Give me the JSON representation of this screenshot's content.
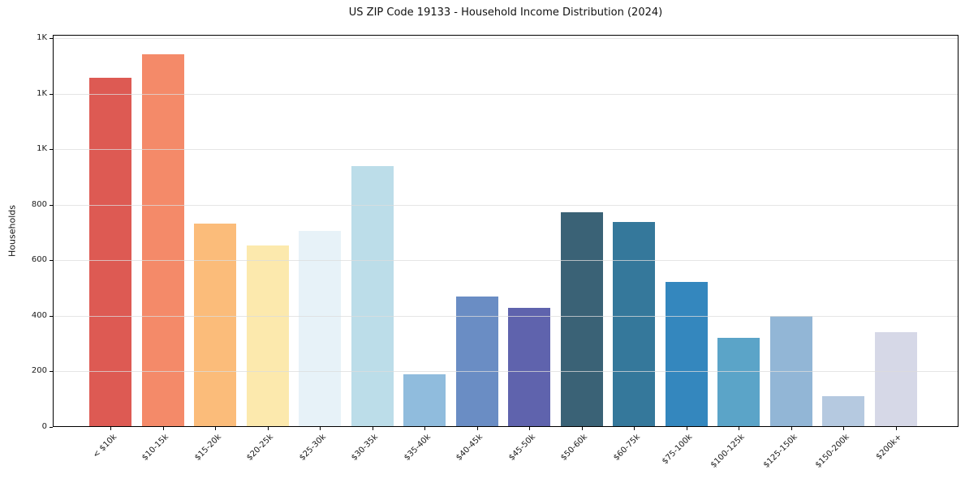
{
  "chart_data": {
    "type": "bar",
    "title": "US ZIP Code 19133 - Household Income Distribution (2024)",
    "xlabel": "",
    "ylabel": "Households",
    "categories": [
      "< $10k",
      "$10-15k",
      "$15-20k",
      "$20-25k",
      "$25-30k",
      "$30-35k",
      "$35-40k",
      "$40-45k",
      "$45-50k",
      "$50-60k",
      "$60-75k",
      "$75-100k",
      "$100-125k",
      "$125-150k",
      "$150-200k",
      "$200k+"
    ],
    "values": [
      1258,
      1342,
      732,
      653,
      706,
      939,
      190,
      470,
      429,
      773,
      738,
      522,
      322,
      400,
      111,
      342
    ],
    "bar_colors": [
      "#dd5a53",
      "#f48a69",
      "#fbbc7a",
      "#fce9ad",
      "#e7f2f8",
      "#bcdde9",
      "#90bcdd",
      "#6a8dc4",
      "#5f63ad",
      "#3a6276",
      "#35789b",
      "#3487be",
      "#5ba4c8",
      "#92b6d6",
      "#b5c9e0",
      "#d6d8e7"
    ],
    "ylim": [
      0,
      1412
    ],
    "yticks": {
      "values": [
        0,
        200,
        400,
        600,
        800,
        1000,
        1200,
        1400
      ],
      "labels": [
        "0",
        "200",
        "400",
        "600",
        "800",
        "1K",
        "1K",
        "1K"
      ]
    },
    "grid": "horizontal",
    "legend": "none",
    "colors": {
      "grid": "#e5e5e5",
      "spine": "#000000",
      "text": "#1a1a1a"
    }
  }
}
